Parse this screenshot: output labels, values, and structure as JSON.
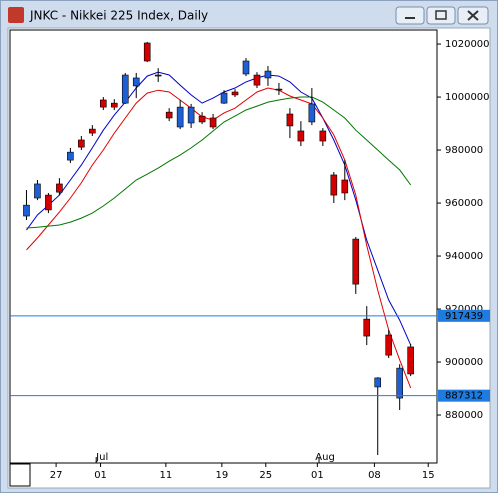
{
  "chart_data": {
    "type": "candlestick",
    "title": "JNKC - Nikkei 225 Index, Daily",
    "x": [
      0,
      1,
      2,
      3,
      4,
      5,
      6,
      7,
      8,
      9,
      10,
      11,
      12,
      13,
      14,
      15,
      16,
      17,
      18,
      19,
      20,
      21,
      22,
      23,
      24,
      25,
      26,
      27,
      28,
      29,
      30,
      31,
      32,
      33,
      34,
      35
    ],
    "open": [
      955100,
      961900,
      963000,
      967200,
      976200,
      983800,
      987900,
      998900,
      997700,
      997700,
      1004200,
      1020400,
      1008300,
      994300,
      988700,
      990200,
      992800,
      992100,
      997700,
      1001900,
      1008700,
      1008300,
      1007200,
      1003000,
      993600,
      987200,
      990600,
      987200,
      970600,
      968700,
      946400,
      916200,
      890600,
      910200,
      886400,
      905700
    ],
    "high": [
      964900,
      968700,
      963800,
      969400,
      980800,
      985300,
      989400,
      1000000,
      999200,
      1009100,
      1009100,
      1020800,
      1010900,
      995800,
      998900,
      997400,
      994300,
      993600,
      1002600,
      1003000,
      1014700,
      1009400,
      1011700,
      1005300,
      995800,
      990900,
      1003400,
      988300,
      971700,
      976200,
      947200,
      921100,
      894300,
      912100,
      899200,
      906800
    ],
    "low": [
      953600,
      961100,
      956200,
      963000,
      975100,
      980000,
      985300,
      995100,
      995100,
      997400,
      999600,
      1013200,
      1005700,
      990900,
      987900,
      988300,
      989800,
      987900,
      997400,
      1000000,
      1007900,
      1003400,
      1004200,
      1000800,
      984500,
      981500,
      989400,
      981500,
      960000,
      961100,
      925700,
      906400,
      864900,
      901500,
      881900,
      894700
    ],
    "close": [
      959200,
      967200,
      957400,
      964100,
      979200,
      981100,
      986400,
      996200,
      996200,
      1008300,
      1007200,
      1013600,
      1008100,
      992100,
      996200,
      996200,
      990600,
      988700,
      1001500,
      1000800,
      1013600,
      1004500,
      1009800,
      1002800,
      989100,
      983400,
      997400,
      983400,
      963000,
      963800,
      929400,
      909800,
      894000,
      902600,
      897700,
      895500
    ],
    "up_color": "#1f5fd6",
    "down_color": "#d40000",
    "series": [
      {
        "color": "#0000c8",
        "values": [
          949800,
          955500,
          959200,
          963000,
          968700,
          974300,
          980800,
          987500,
          993200,
          998100,
          1003400,
          1007900,
          1009400,
          1008300,
          1004500,
          1000800,
          997700,
          999600,
          1001900,
          1003400,
          1005700,
          1007200,
          1008300,
          1007900,
          1005700,
          1001900,
          999600,
          992100,
          983800,
          974300,
          961100,
          946000,
          934700,
          923400,
          915800,
          906400
        ]
      },
      {
        "color": "#e00000",
        "values": [
          942300,
          946800,
          951700,
          956600,
          961900,
          967600,
          974300,
          980000,
          986400,
          992100,
          997700,
          1001500,
          1002600,
          1001900,
          998900,
          995800,
          992500,
          991300,
          994000,
          995800,
          998900,
          1001900,
          1003400,
          1002600,
          1000400,
          998900,
          997400,
          992100,
          985700,
          976200,
          963000,
          944100,
          927200,
          912100,
          900800,
          890200
        ]
      },
      {
        "color": "#007800",
        "values": [
          950600,
          950900,
          951300,
          951700,
          952800,
          954300,
          956200,
          958900,
          961900,
          965300,
          968700,
          970900,
          973200,
          975800,
          978100,
          980800,
          983800,
          987200,
          990600,
          992800,
          995100,
          996600,
          998100,
          998900,
          999600,
          1000000,
          1000000,
          998100,
          995100,
          992100,
          987500,
          983800,
          980000,
          976200,
          972500,
          966800
        ]
      }
    ],
    "price_lines": [
      917439,
      887312
    ],
    "price_line_color": "#1e7be0",
    "xlim": [
      -1.5,
      37.4
    ],
    "xticks": [
      {
        "value": 2.7,
        "label": "27"
      },
      {
        "value": 6.75,
        "label": "01"
      },
      {
        "value": 12.7,
        "label": "11"
      },
      {
        "value": 17.8,
        "label": "19"
      },
      {
        "value": 21.8,
        "label": "25"
      },
      {
        "value": 26.5,
        "label": "01"
      },
      {
        "value": 31.7,
        "label": "08"
      },
      {
        "value": 36.6,
        "label": "15"
      }
    ],
    "month_labels": [
      {
        "value": 6.9,
        "label": "Jul"
      },
      {
        "value": 27.2,
        "label": "Aug"
      }
    ],
    "ylim": [
      861900,
      1025300
    ],
    "yticks": [
      880000,
      900000,
      920000,
      940000,
      960000,
      980000,
      1000000,
      1020000
    ]
  }
}
